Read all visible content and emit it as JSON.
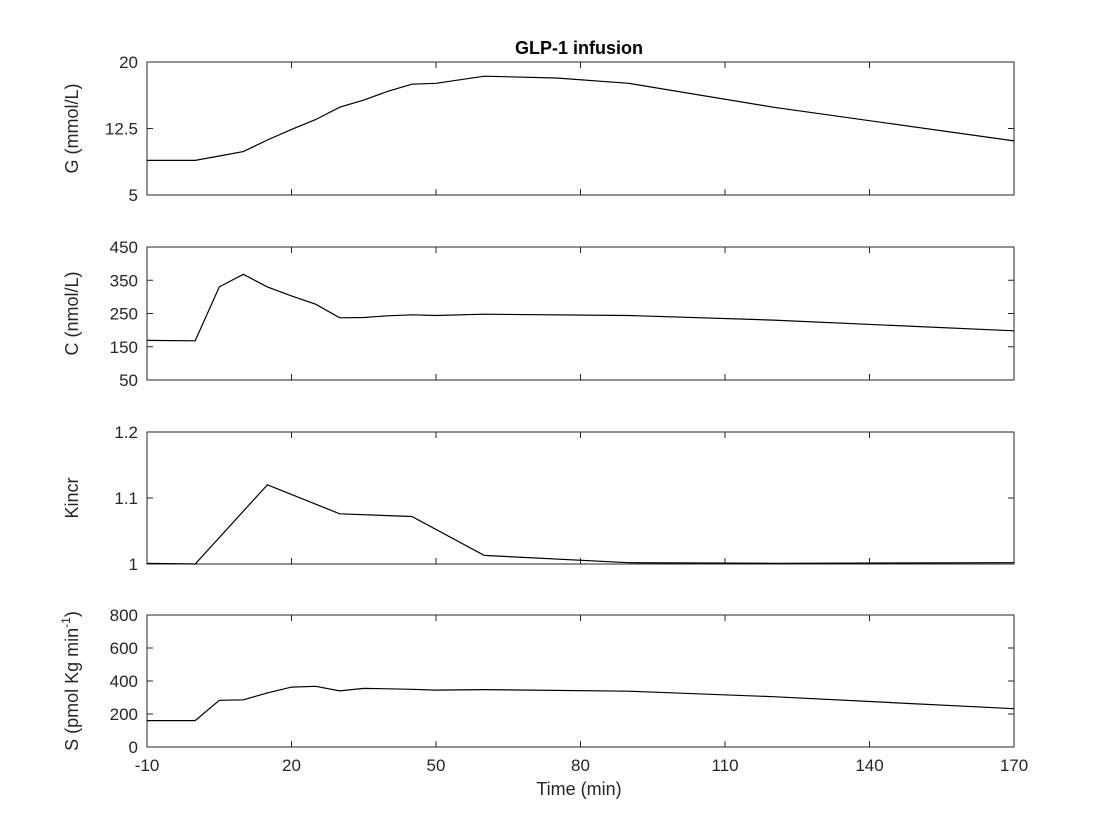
{
  "chart_data": {
    "type": "line",
    "title": "GLP-1 infusion",
    "xlabel": "Time (min)",
    "xlim": [
      -10,
      170
    ],
    "xticks": [
      "-10",
      "20",
      "50",
      "80",
      "110",
      "140",
      "170"
    ],
    "panels": [
      {
        "ylabel": "G (mmol/L)",
        "ylim": [
          5,
          20
        ],
        "yticks": [
          "5",
          "12.5",
          "20"
        ],
        "series": [
          {
            "x": [
              -10,
              0,
              5,
              10,
              15,
              20,
              25,
              30,
              35,
              40,
              45,
              50,
              60,
              75,
              90,
              120,
              170
            ],
            "y": [
              8.9,
              8.9,
              9.4,
              9.9,
              11.2,
              12.4,
              13.5,
              14.9,
              15.7,
              16.7,
              17.5,
              17.6,
              18.4,
              18.2,
              17.6,
              14.9,
              11.1
            ]
          }
        ]
      },
      {
        "ylabel": "C (nmol/L)",
        "ylim": [
          50,
          450
        ],
        "yticks": [
          "50",
          "150",
          "250",
          "350",
          "450"
        ],
        "series": [
          {
            "x": [
              -10,
              0,
              5,
              10,
              15,
              20,
              25,
              30,
              35,
              40,
              45,
              50,
              60,
              90,
              120,
              170
            ],
            "y": [
              169,
              168,
              330,
              368,
              330,
              303,
              278,
              237,
              238,
              243,
              246,
              244,
              248,
              244,
              230,
              198
            ]
          }
        ]
      },
      {
        "ylabel": "Kincr",
        "ylim": [
          1,
          1.2
        ],
        "yticks": [
          "1",
          "1.1",
          "1.2"
        ],
        "series": [
          {
            "x": [
              -10,
              0,
              15,
              30,
              45,
              60,
              90,
              120,
              170
            ],
            "y": [
              1.001,
              1.0,
              1.12,
              1.076,
              1.072,
              1.013,
              1.002,
              1.001,
              1.002
            ]
          }
        ]
      },
      {
        "ylabel": "S (pmol Kg min",
        "ylabel_sup": "-1",
        "ylabel_close": ")",
        "ylim": [
          0,
          800
        ],
        "yticks": [
          "0",
          "200",
          "400",
          "600",
          "800"
        ],
        "series": [
          {
            "x": [
              -10,
              0,
              5,
              10,
              15,
              20,
              25,
              30,
              35,
              40,
              45,
              50,
              60,
              90,
              120,
              170
            ],
            "y": [
              160,
              160,
              283,
              286,
              328,
              363,
              368,
              340,
              355,
              353,
              350,
              345,
              348,
              338,
              305,
              232
            ]
          }
        ]
      }
    ],
    "grid": false,
    "legend": "none"
  }
}
